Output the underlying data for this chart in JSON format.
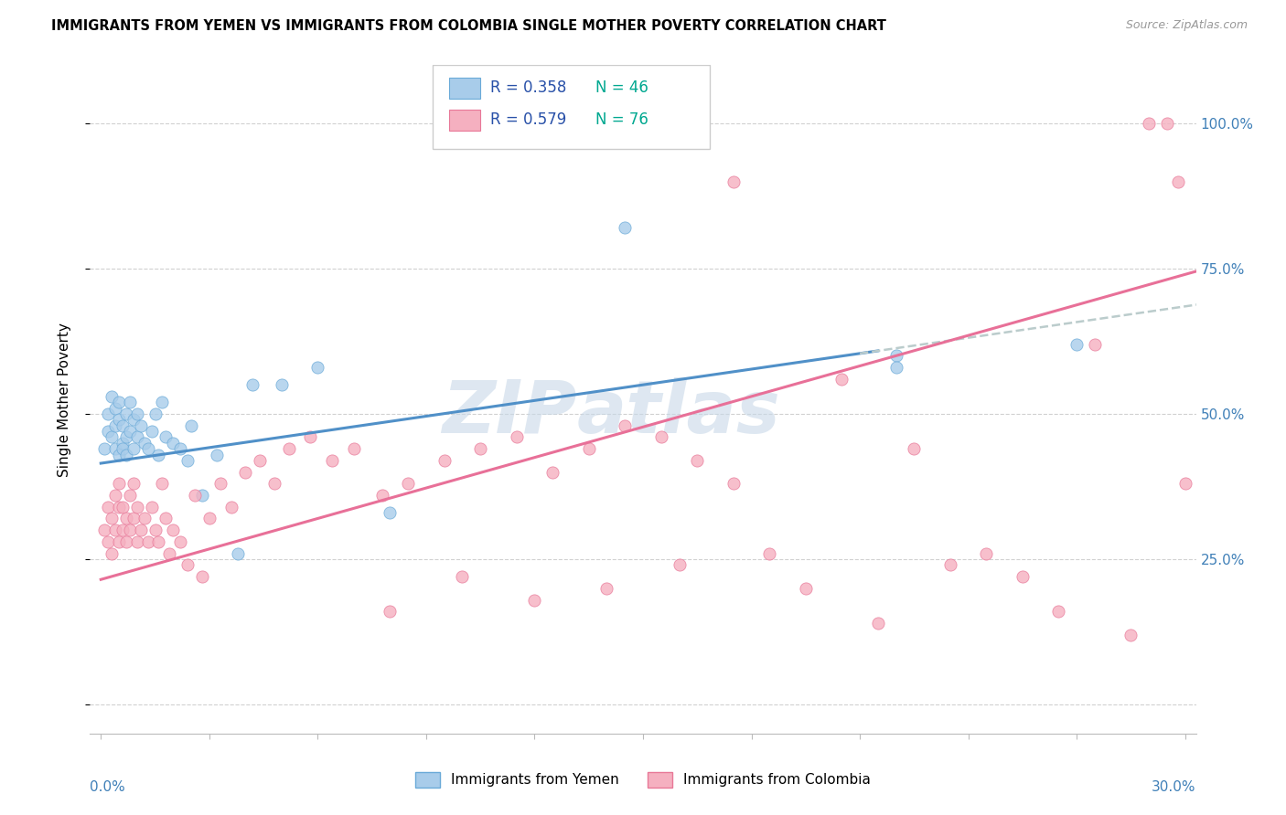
{
  "title": "IMMIGRANTS FROM YEMEN VS IMMIGRANTS FROM COLOMBIA SINGLE MOTHER POVERTY CORRELATION CHART",
  "source": "Source: ZipAtlas.com",
  "ylabel": "Single Mother Poverty",
  "color_yemen": "#A8CCEA",
  "color_yemen_edge": "#6AAAD8",
  "color_colombia": "#F5B0C0",
  "color_colombia_edge": "#E87898",
  "color_yemen_line": "#5090C8",
  "color_colombia_line": "#E87098",
  "color_dashed": "#BBCCCC",
  "color_right_axis": "#4080B8",
  "color_watermark": "#C8D8E8",
  "legend_r_color": "#2850A8",
  "legend_n_color": "#00A890",
  "label_yemen": "Immigrants from Yemen",
  "label_colombia": "Immigrants from Colombia",
  "xlim_min": 0.0,
  "xlim_max": 0.3,
  "ylim_min": -0.05,
  "ylim_max": 1.1,
  "yemen_intercept": 0.415,
  "yemen_slope": 0.9,
  "colombia_intercept": 0.215,
  "colombia_slope": 1.75,
  "yemen_x": [
    0.001,
    0.002,
    0.002,
    0.003,
    0.003,
    0.004,
    0.004,
    0.004,
    0.005,
    0.005,
    0.005,
    0.006,
    0.006,
    0.006,
    0.007,
    0.007,
    0.007,
    0.008,
    0.008,
    0.009,
    0.009,
    0.01,
    0.01,
    0.011,
    0.012,
    0.013,
    0.014,
    0.015,
    0.016,
    0.017,
    0.018,
    0.02,
    0.022,
    0.024,
    0.025,
    0.028,
    0.032,
    0.038,
    0.042,
    0.05,
    0.06,
    0.08,
    0.145,
    0.22,
    0.22,
    0.27
  ],
  "yemen_y": [
    0.44,
    0.5,
    0.47,
    0.53,
    0.46,
    0.48,
    0.44,
    0.51,
    0.43,
    0.49,
    0.52,
    0.45,
    0.48,
    0.44,
    0.5,
    0.46,
    0.43,
    0.47,
    0.52,
    0.44,
    0.49,
    0.46,
    0.5,
    0.48,
    0.45,
    0.44,
    0.47,
    0.5,
    0.43,
    0.52,
    0.46,
    0.45,
    0.44,
    0.42,
    0.48,
    0.36,
    0.43,
    0.26,
    0.55,
    0.55,
    0.58,
    0.33,
    0.82,
    0.6,
    0.58,
    0.62
  ],
  "colombia_x": [
    0.001,
    0.002,
    0.002,
    0.003,
    0.003,
    0.004,
    0.004,
    0.005,
    0.005,
    0.005,
    0.006,
    0.006,
    0.007,
    0.007,
    0.008,
    0.008,
    0.009,
    0.009,
    0.01,
    0.01,
    0.011,
    0.012,
    0.013,
    0.014,
    0.015,
    0.016,
    0.017,
    0.018,
    0.019,
    0.02,
    0.022,
    0.024,
    0.026,
    0.028,
    0.03,
    0.033,
    0.036,
    0.04,
    0.044,
    0.048,
    0.052,
    0.058,
    0.064,
    0.07,
    0.078,
    0.085,
    0.095,
    0.105,
    0.115,
    0.125,
    0.135,
    0.145,
    0.155,
    0.165,
    0.175,
    0.185,
    0.195,
    0.205,
    0.215,
    0.225,
    0.235,
    0.245,
    0.255,
    0.265,
    0.275,
    0.285,
    0.29,
    0.295,
    0.298,
    0.3,
    0.08,
    0.175,
    0.1,
    0.12,
    0.14,
    0.16
  ],
  "colombia_y": [
    0.3,
    0.28,
    0.34,
    0.26,
    0.32,
    0.3,
    0.36,
    0.28,
    0.34,
    0.38,
    0.3,
    0.34,
    0.28,
    0.32,
    0.3,
    0.36,
    0.32,
    0.38,
    0.28,
    0.34,
    0.3,
    0.32,
    0.28,
    0.34,
    0.3,
    0.28,
    0.38,
    0.32,
    0.26,
    0.3,
    0.28,
    0.24,
    0.36,
    0.22,
    0.32,
    0.38,
    0.34,
    0.4,
    0.42,
    0.38,
    0.44,
    0.46,
    0.42,
    0.44,
    0.36,
    0.38,
    0.42,
    0.44,
    0.46,
    0.4,
    0.44,
    0.48,
    0.46,
    0.42,
    0.38,
    0.26,
    0.2,
    0.56,
    0.14,
    0.44,
    0.24,
    0.26,
    0.22,
    0.16,
    0.62,
    0.12,
    1.0,
    1.0,
    0.9,
    0.38,
    0.16,
    0.9,
    0.22,
    0.18,
    0.2,
    0.24
  ]
}
